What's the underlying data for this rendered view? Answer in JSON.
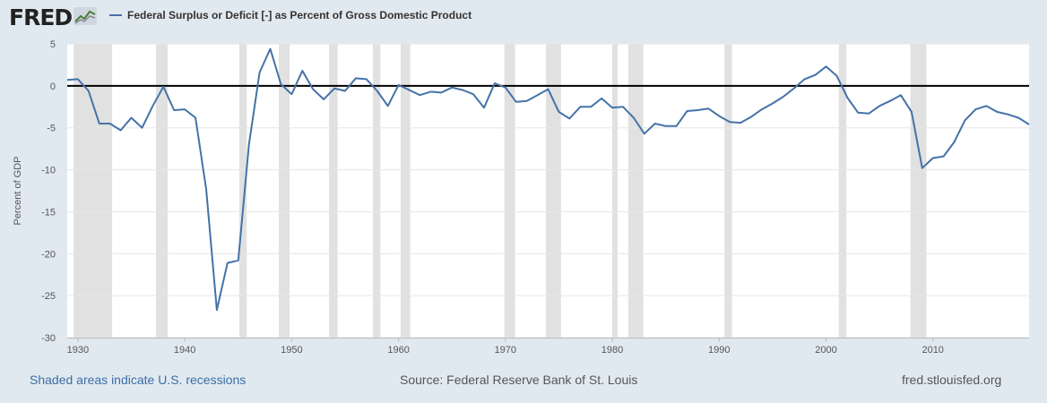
{
  "logo": {
    "text": "FRED",
    "icon": "line-chart-icon"
  },
  "colors": {
    "line": "#4572a7",
    "recession": "#e1e1e1",
    "background": "#e1e9f0"
  },
  "chart_data": {
    "type": "line",
    "title": "Federal Surplus or Deficit [-] as Percent of Gross Domestic Product",
    "xlabel": "",
    "ylabel": "Percent of GDP",
    "xlim": [
      1929,
      2019
    ],
    "ylim": [
      -30,
      5
    ],
    "grid": true,
    "legend": "top-left",
    "yticks": [
      5,
      0,
      -5,
      -10,
      -15,
      -20,
      -25,
      -30
    ],
    "ytick_labels": [
      "5",
      "0",
      "-5",
      "-10",
      "-15",
      "-20",
      "-25",
      "-30"
    ],
    "xticks": [
      1930,
      1940,
      1950,
      1960,
      1970,
      1980,
      1990,
      2000,
      2010
    ],
    "xtick_labels": [
      "1930",
      "1940",
      "1950",
      "1960",
      "1970",
      "1980",
      "1990",
      "2000",
      "2010"
    ],
    "recessions": [
      [
        1929.6,
        1933.2
      ],
      [
        1937.3,
        1938.4
      ],
      [
        1945.1,
        1945.8
      ],
      [
        1948.8,
        1949.8
      ],
      [
        1953.5,
        1954.3
      ],
      [
        1957.6,
        1958.3
      ],
      [
        1960.2,
        1961.1
      ],
      [
        1969.9,
        1970.9
      ],
      [
        1973.8,
        1975.2
      ],
      [
        1980.0,
        1980.5
      ],
      [
        1981.5,
        1982.9
      ],
      [
        1990.5,
        1991.2
      ],
      [
        2001.2,
        2001.9
      ],
      [
        2007.9,
        2009.4
      ]
    ],
    "series": [
      {
        "name": "Federal Surplus or Deficit [-] as Percent of Gross Domestic Product",
        "x": [
          1929,
          1930,
          1931,
          1932,
          1933,
          1934,
          1935,
          1936,
          1937,
          1938,
          1939,
          1940,
          1941,
          1942,
          1943,
          1944,
          1945,
          1946,
          1947,
          1948,
          1949,
          1950,
          1951,
          1952,
          1953,
          1954,
          1955,
          1956,
          1957,
          1958,
          1959,
          1960,
          1961,
          1962,
          1963,
          1964,
          1965,
          1966,
          1967,
          1968,
          1969,
          1970,
          1971,
          1972,
          1973,
          1974,
          1975,
          1976,
          1977,
          1978,
          1979,
          1980,
          1981,
          1982,
          1983,
          1984,
          1985,
          1986,
          1987,
          1988,
          1989,
          1990,
          1991,
          1992,
          1993,
          1994,
          1995,
          1996,
          1997,
          1998,
          1999,
          2000,
          2001,
          2002,
          2003,
          2004,
          2005,
          2006,
          2007,
          2008,
          2009,
          2010,
          2011,
          2012,
          2013,
          2014,
          2015,
          2016,
          2017,
          2018,
          2019
        ],
        "values": [
          0.7,
          0.8,
          -0.6,
          -4.5,
          -4.5,
          -5.3,
          -3.8,
          -5.0,
          -2.4,
          -0.1,
          -2.9,
          -2.8,
          -3.8,
          -12.3,
          -26.7,
          -21.1,
          -20.8,
          -7.0,
          1.6,
          4.4,
          0.2,
          -1.0,
          1.8,
          -0.4,
          -1.6,
          -0.3,
          -0.6,
          0.9,
          0.8,
          -0.6,
          -2.4,
          0.1,
          -0.5,
          -1.1,
          -0.7,
          -0.8,
          -0.2,
          -0.5,
          -1.0,
          -2.6,
          0.3,
          -0.2,
          -1.9,
          -1.8,
          -1.1,
          -0.4,
          -3.1,
          -3.9,
          -2.5,
          -2.5,
          -1.5,
          -2.6,
          -2.5,
          -3.8,
          -5.7,
          -4.5,
          -4.8,
          -4.8,
          -3.0,
          -2.9,
          -2.7,
          -3.6,
          -4.3,
          -4.4,
          -3.7,
          -2.8,
          -2.1,
          -1.3,
          -0.3,
          0.8,
          1.3,
          2.3,
          1.2,
          -1.4,
          -3.2,
          -3.3,
          -2.4,
          -1.8,
          -1.1,
          -3.1,
          -9.8,
          -8.6,
          -8.4,
          -6.7,
          -4.1,
          -2.8,
          -2.4,
          -3.1,
          -3.4,
          -3.8,
          -4.6
        ]
      }
    ]
  },
  "footer": {
    "recession_note": "Shaded areas indicate U.S. recessions",
    "source": "Source: Federal Reserve Bank of St. Louis",
    "url": "fred.stlouisfed.org"
  }
}
